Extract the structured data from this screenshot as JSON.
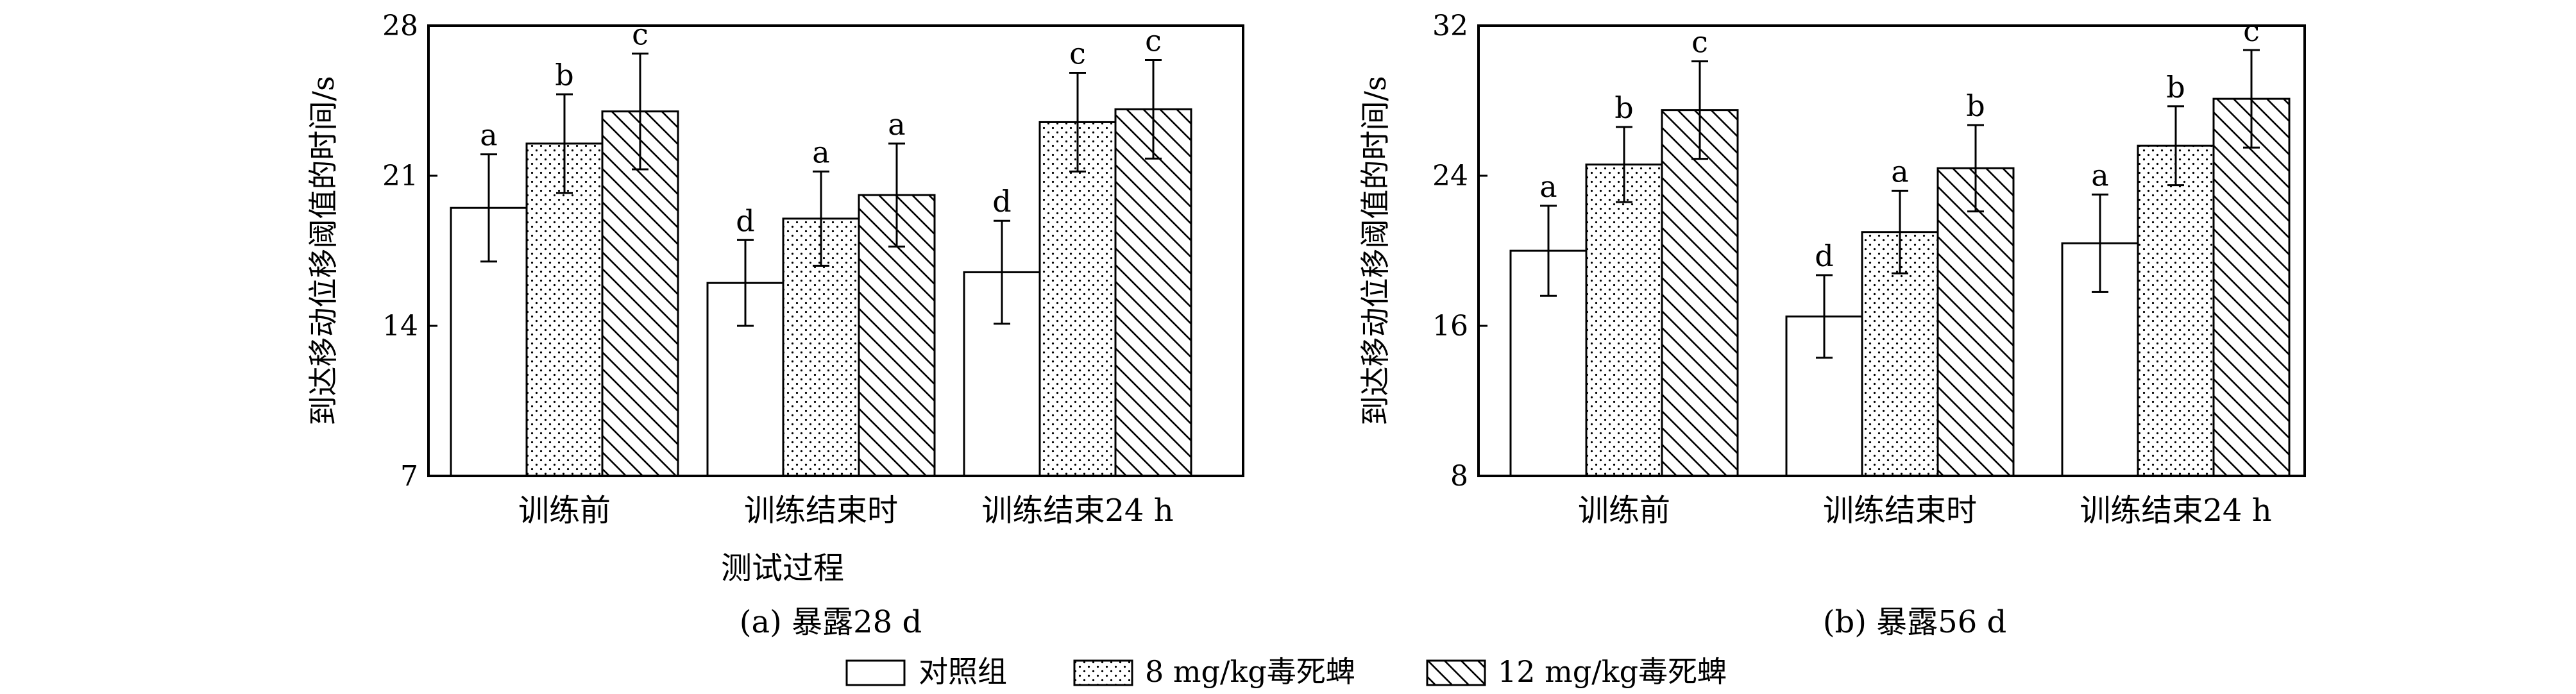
{
  "colors": {
    "axis": "#000000",
    "fill": "#ffffff",
    "ink": "#000000"
  },
  "legend": {
    "items": [
      {
        "label": "对照组",
        "pattern": "none"
      },
      {
        "label": "8 mg/kg毒死蜱",
        "pattern": "dots"
      },
      {
        "label": "12 mg/kg毒死蜱",
        "pattern": "hatch"
      }
    ]
  },
  "chart_data": [
    {
      "type": "bar",
      "caption": "(a) 暴露28 d",
      "ylabel": "到达移动位移阈值的时间/s",
      "xlabel": "测试过程",
      "ylim": [
        7,
        28
      ],
      "yticks": [
        7,
        14,
        21,
        28
      ],
      "categories": [
        "训练前",
        "训练结束时",
        "训练结束24 h"
      ],
      "series": [
        {
          "name": "对照组",
          "values": [
            19.5,
            16.0,
            16.5
          ],
          "errors": [
            2.5,
            2.0,
            2.4
          ],
          "labels": [
            "a",
            "d",
            "d"
          ]
        },
        {
          "name": "8 mg/kg毒死蜱",
          "values": [
            22.5,
            19.0,
            23.5
          ],
          "errors": [
            2.3,
            2.2,
            2.3
          ],
          "labels": [
            "b",
            "a",
            "c"
          ]
        },
        {
          "name": "12 mg/kg毒死蜱",
          "values": [
            24.0,
            20.1,
            24.1
          ],
          "errors": [
            2.7,
            2.4,
            2.3
          ],
          "labels": [
            "c",
            "a",
            "c"
          ]
        }
      ]
    },
    {
      "type": "bar",
      "caption": "(b) 暴露56 d",
      "ylabel": "到达移动位移阈值的时间/s",
      "xlabel": "",
      "ylim": [
        8,
        32
      ],
      "yticks": [
        8,
        16,
        24,
        32
      ],
      "categories": [
        "训练前",
        "训练结束时",
        "训练结束24 h"
      ],
      "series": [
        {
          "name": "对照组",
          "values": [
            20.0,
            16.5,
            20.4
          ],
          "errors": [
            2.4,
            2.2,
            2.6
          ],
          "labels": [
            "a",
            "d",
            "a"
          ]
        },
        {
          "name": "8 mg/kg毒死蜱",
          "values": [
            24.6,
            21.0,
            25.6
          ],
          "errors": [
            2.0,
            2.2,
            2.1
          ],
          "labels": [
            "b",
            "a",
            "b"
          ]
        },
        {
          "name": "12 mg/kg毒死蜱",
          "values": [
            27.5,
            24.4,
            28.1
          ],
          "errors": [
            2.6,
            2.3,
            2.6
          ],
          "labels": [
            "c",
            "b",
            "c"
          ]
        }
      ]
    }
  ]
}
